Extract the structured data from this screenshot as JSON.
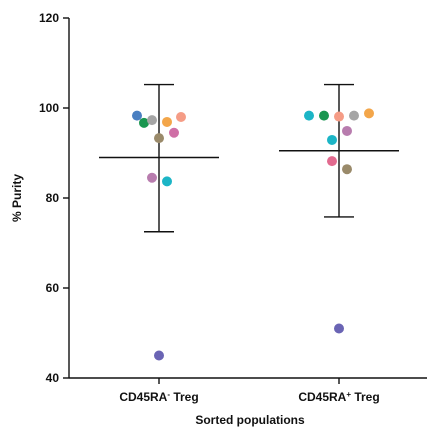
{
  "chart_data": {
    "type": "scatter",
    "ylabel": "% Purity",
    "xlabel": "Sorted populations",
    "ylim": [
      40,
      120
    ],
    "y_ticks": [
      40,
      60,
      80,
      100,
      120
    ],
    "grid": false,
    "categories": [
      {
        "base": "CD45RA",
        "sup": "-",
        "suffix": " Treg"
      },
      {
        "base": "CD45RA",
        "sup": "+",
        "suffix": " Treg"
      }
    ],
    "groups": [
      {
        "category_index": 0,
        "mean": 89,
        "error_upper": 105.2,
        "error_lower": 72.5,
        "points": [
          {
            "y": 98.3,
            "color": "#4a7fc1"
          },
          {
            "y": 96.7,
            "color": "#1a9650"
          },
          {
            "y": 97.3,
            "color": "#a5a5a5"
          },
          {
            "y": 93.3,
            "color": "#9a8a6a"
          },
          {
            "y": 96.9,
            "color": "#f3a64a"
          },
          {
            "y": 98.0,
            "color": "#f59c86"
          },
          {
            "y": 94.5,
            "color": "#cf6fa6"
          },
          {
            "y": 84.5,
            "color": "#b87cae"
          },
          {
            "y": 83.7,
            "color": "#1cb5c6"
          },
          {
            "y": 45.0,
            "color": "#6a64b4"
          }
        ]
      },
      {
        "category_index": 1,
        "mean": 90.5,
        "error_upper": 105.2,
        "error_lower": 75.8,
        "points": [
          {
            "y": 98.3,
            "color": "#1cb5c6"
          },
          {
            "y": 98.3,
            "color": "#1a9650"
          },
          {
            "y": 98.1,
            "color": "#f59c86"
          },
          {
            "y": 98.3,
            "color": "#a5a5a5"
          },
          {
            "y": 98.8,
            "color": "#f3a64a"
          },
          {
            "y": 92.9,
            "color": "#1cb5c6"
          },
          {
            "y": 94.9,
            "color": "#b87cae"
          },
          {
            "y": 88.2,
            "color": "#e26a8f"
          },
          {
            "y": 86.4,
            "color": "#9a8a6a"
          },
          {
            "y": 51.0,
            "color": "#6a64b4"
          }
        ]
      }
    ]
  }
}
